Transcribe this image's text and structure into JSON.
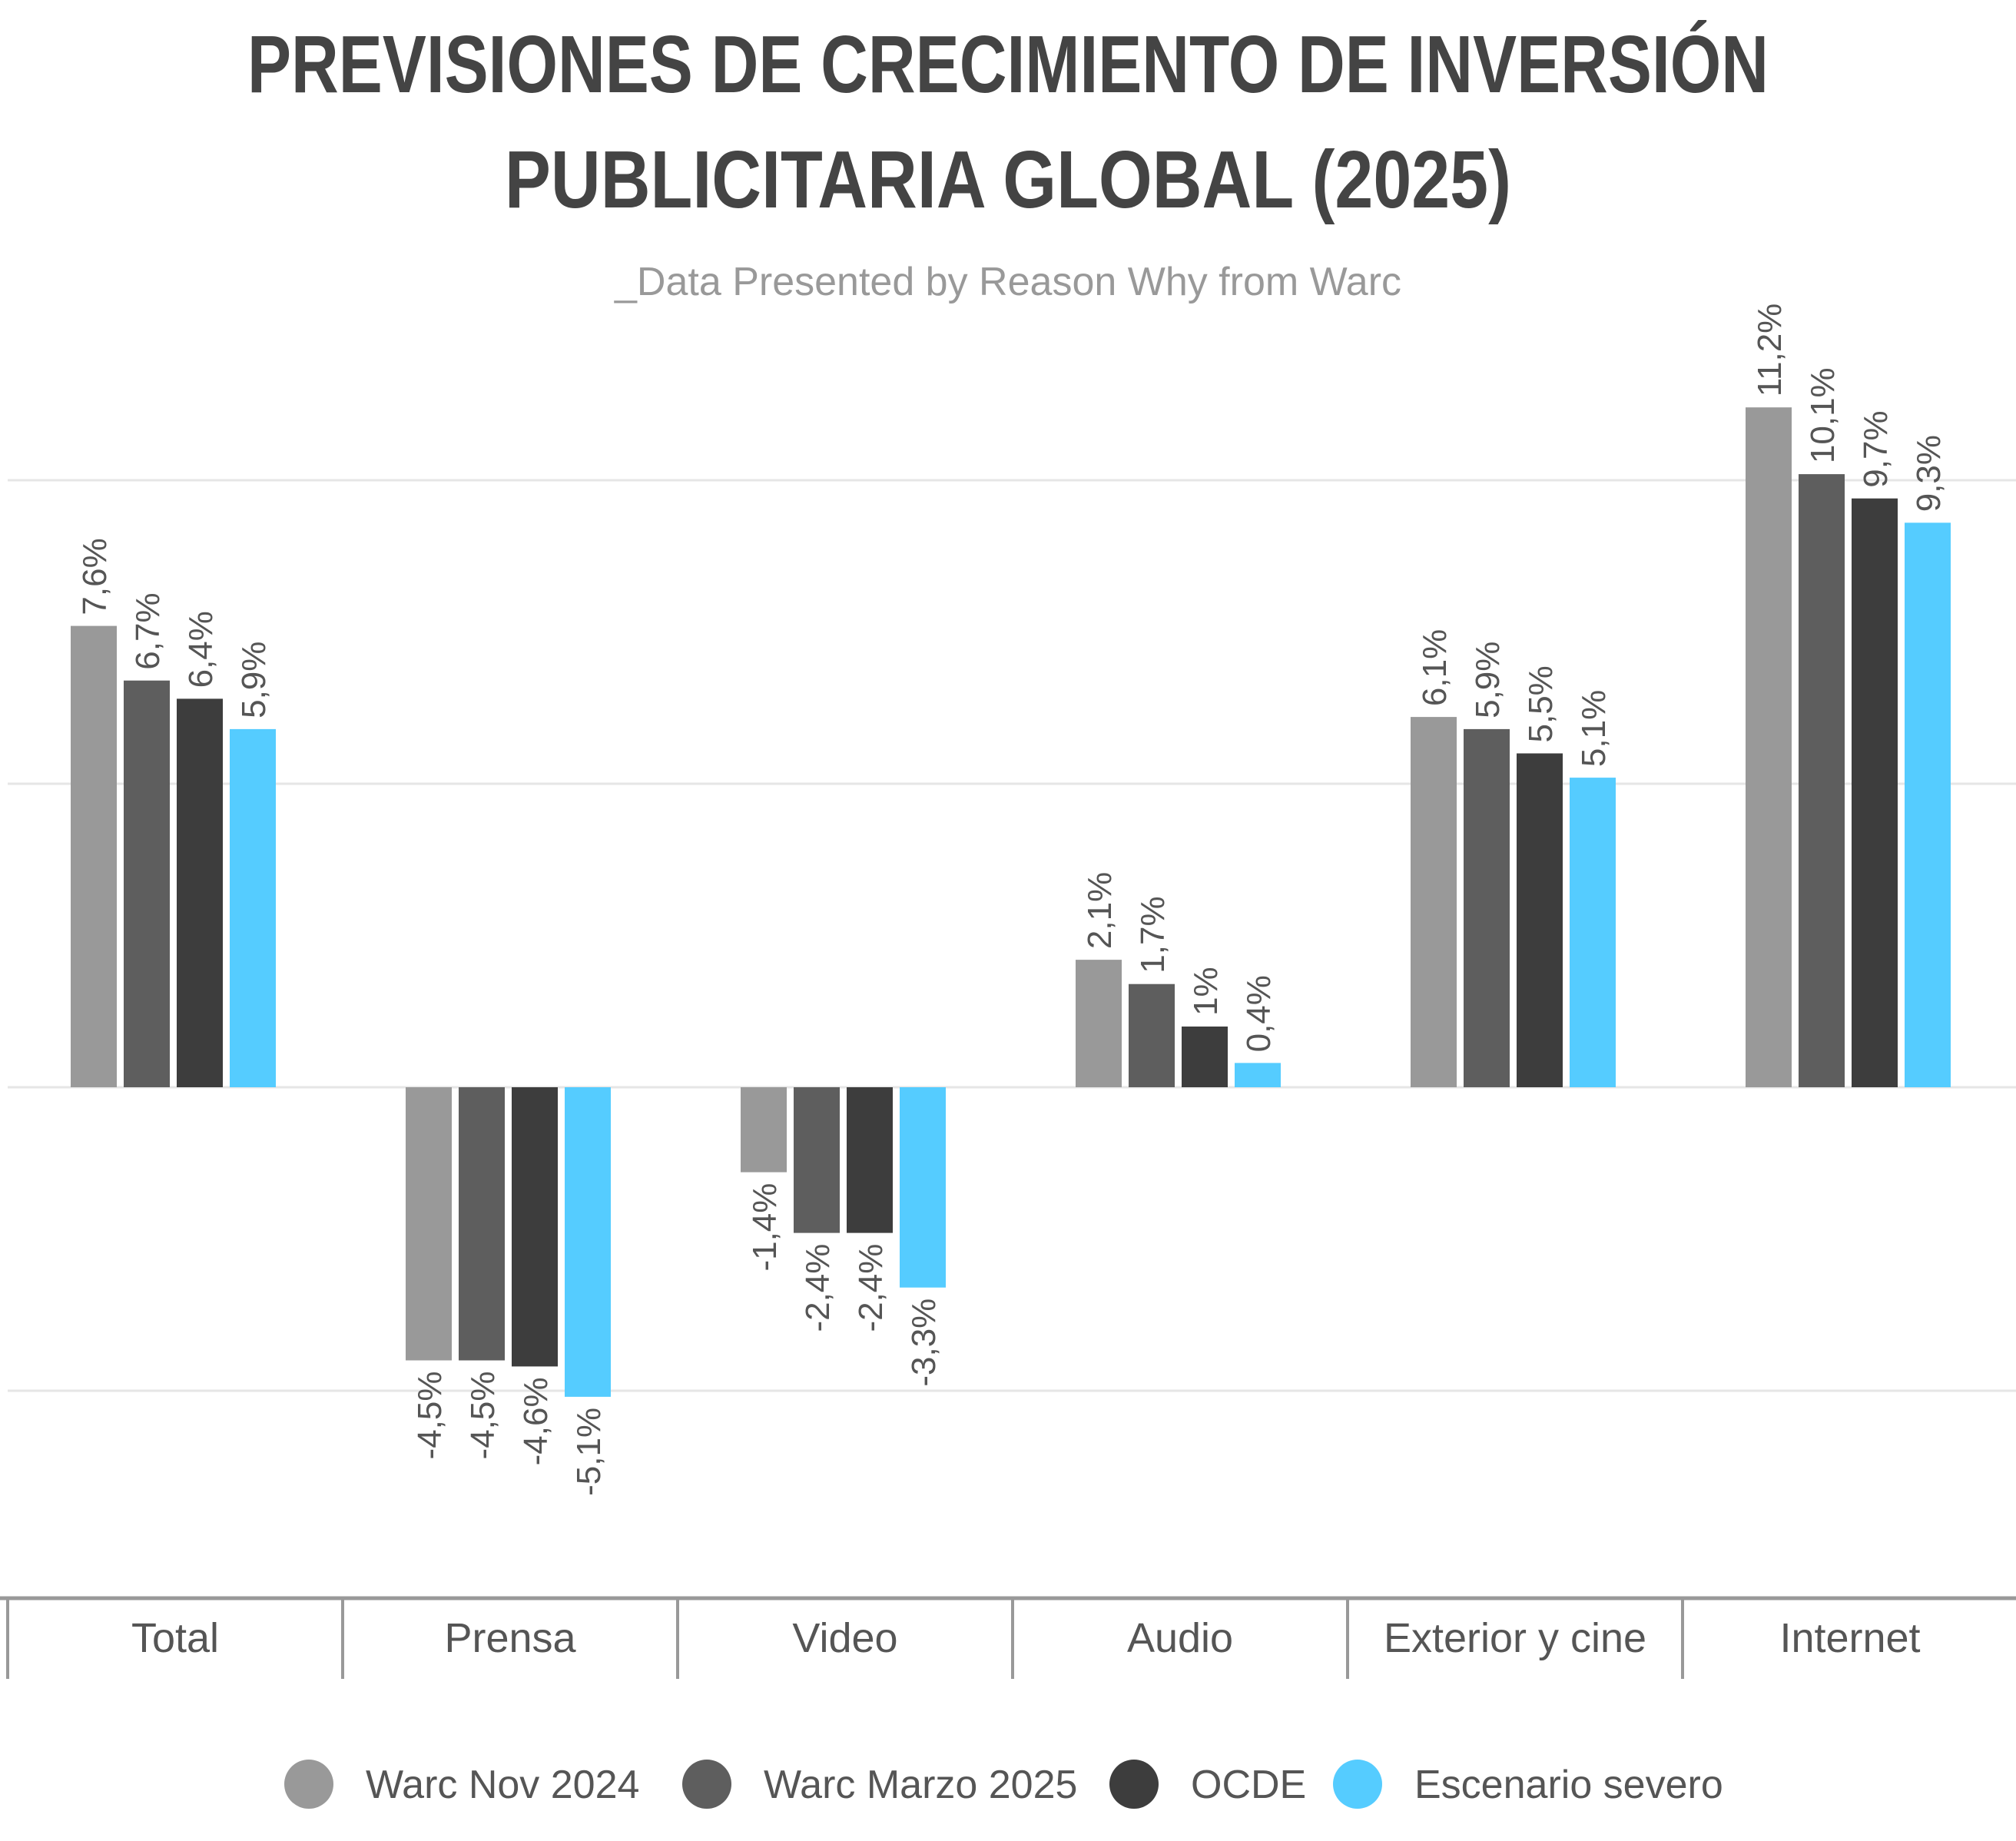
{
  "chart_data": {
    "type": "bar",
    "title": "PREVISIONES DE CRECIMIENTO DE INVERSIÓN PUBLICITARIA GLOBAL (2025)",
    "title_lines": [
      "PREVISIONES DE CRECIMIENTO DE INVERSIÓN",
      "PUBLICITARIA GLOBAL (2025)"
    ],
    "subtitle": "_Data Presented by Reason Why from Warc",
    "categories": [
      "Total",
      "Prensa",
      "Video",
      "Audio",
      "Exterior y cine",
      "Internet"
    ],
    "series": [
      {
        "name": "Warc Nov 2024",
        "color": "#999999",
        "values": [
          7.6,
          -4.5,
          -1.4,
          2.1,
          6.1,
          11.2
        ],
        "labels": [
          "7,6%",
          "-4,5%",
          "-1,4%",
          "2,1%",
          "6,1%",
          "11,2%"
        ]
      },
      {
        "name": "Warc Marzo 2025",
        "color": "#5e5e5e",
        "values": [
          6.7,
          -4.5,
          -2.4,
          1.7,
          5.9,
          10.1
        ],
        "labels": [
          "6,7%",
          "-4,5%",
          "-2,4%",
          "1,7%",
          "5,9%",
          "10,1%"
        ]
      },
      {
        "name": "OCDE",
        "color": "#3d3d3d",
        "values": [
          6.4,
          -4.6,
          -2.4,
          1.0,
          5.5,
          9.7
        ],
        "labels": [
          "6,4%",
          "-4,6%",
          "-2,4%",
          "1%",
          "5,5%",
          "9,7%"
        ]
      },
      {
        "name": "Escenario severo",
        "color": "#55ccff",
        "values": [
          5.9,
          -5.1,
          -3.3,
          0.4,
          5.1,
          9.3
        ],
        "labels": [
          "5,9%",
          "-5,1%",
          "-3,3%",
          "0,4%",
          "5,1%",
          "9,3%"
        ]
      }
    ],
    "ylim": [
      -7.5,
      12.5
    ],
    "gridlines": [
      -5,
      0,
      5,
      10
    ],
    "grid": true,
    "y_tick_labels_shown": false,
    "legend_placement": "bottom-center",
    "data_labels": "rotated"
  }
}
